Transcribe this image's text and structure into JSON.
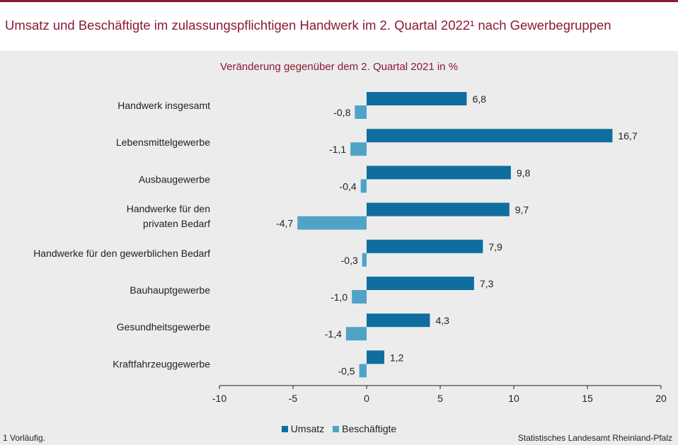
{
  "header": {
    "title": "Umsatz und Beschäftigte im zulassungspflichtigen Handwerk im 2. Quartal 2022¹ nach Gewerbegruppen"
  },
  "chart_data": {
    "type": "bar",
    "orientation": "horizontal",
    "title": "Umsatz und Beschäftigte im zulassungspflichtigen Handwerk im 2. Quartal 2022¹ nach Gewerbegruppen",
    "subtitle": "Veränderung gegenüber dem 2. Quartal 2021 in %",
    "categories": [
      [
        "Handwerk insgesamt"
      ],
      [
        "Lebensmittelgewerbe"
      ],
      [
        "Ausbaugewerbe"
      ],
      [
        "Handwerke für den",
        "privaten Bedarf"
      ],
      [
        "Handwerke für den gewerblichen Bedarf"
      ],
      [
        "Bauhauptgewerbe"
      ],
      [
        "Gesundheitsgewerbe"
      ],
      [
        "Kraftfahrzeuggewerbe"
      ]
    ],
    "series": [
      {
        "name": "Umsatz",
        "color": "#0f6e9f",
        "values": [
          6.8,
          16.7,
          9.8,
          9.7,
          7.9,
          7.3,
          4.3,
          1.2
        ],
        "labels": [
          "6,8",
          "16,7",
          "9,8",
          "9,7",
          "7,9",
          "7,3",
          "4,3",
          "1,2"
        ]
      },
      {
        "name": "Beschäftigte",
        "color": "#4fa3c7",
        "values": [
          -0.8,
          -1.1,
          -0.4,
          -4.7,
          -0.3,
          -1.0,
          -1.4,
          -0.5
        ],
        "labels": [
          "-0,8",
          "-1,1",
          "-0,4",
          "-4,7",
          "-0,3",
          "-1,0",
          "-1,4",
          "-0,5"
        ]
      }
    ],
    "xlim": [
      -10,
      20
    ],
    "xticks": [
      -10,
      -5,
      0,
      5,
      10,
      15,
      20
    ],
    "xticklabels": [
      "-10",
      "-5",
      "0",
      "5",
      "10",
      "15",
      "20"
    ],
    "legend": "bottom-center"
  },
  "footer": {
    "footnote": "1 Vorläufig.",
    "source": "Statistisches Landesamt Rheinland-Pfalz"
  }
}
